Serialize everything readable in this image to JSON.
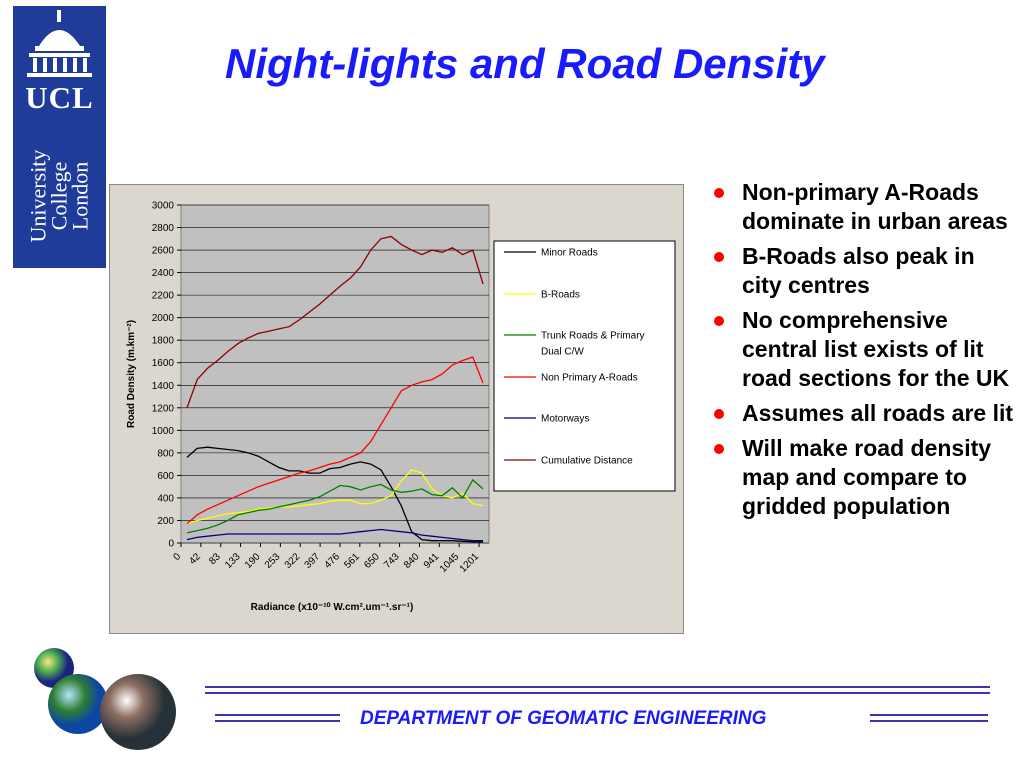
{
  "logo": {
    "abbr": "UCL",
    "line1": "University",
    "line2": "College",
    "line3": "London"
  },
  "title": "Night-lights and Road Density",
  "bullets": [
    "Non-primary A-Roads dominate in urban areas",
    "B-Roads also peak in city centres",
    "No comprehensive central list exists of lit road sections for the UK",
    "Assumes all roads are lit",
    "Will make road density map and compare to gridded population"
  ],
  "footer": {
    "department": "DEPARTMENT OF GEOMATIC ENGINEERING"
  },
  "colors": {
    "title": "#1a1aff",
    "bullet": "#ff0000",
    "logo_bg": "#1f3c9a",
    "rule": "#3a34b0"
  },
  "chart_data": {
    "type": "line",
    "ylabel": "Road Density (m.km⁻²)",
    "xlabel": "Radiance (x10⁻¹⁰ W.cm².um⁻¹.sr⁻¹)",
    "ylim": [
      0,
      3000
    ],
    "y_ticks": [
      "0",
      "200",
      "400",
      "600",
      "800",
      "1000",
      "1200",
      "1400",
      "1600",
      "1800",
      "2000",
      "2200",
      "2400",
      "2600",
      "2800",
      "3000"
    ],
    "x_ticks": [
      "0",
      "42",
      "83",
      "133",
      "190",
      "253",
      "322",
      "397",
      "476",
      "561",
      "650",
      "743",
      "840",
      "941",
      "1045",
      "1201"
    ],
    "grid": "horizontal",
    "legend_position": "right",
    "series": [
      {
        "name": "Minor Roads",
        "color": "#000000",
        "values": [
          760,
          840,
          850,
          840,
          830,
          820,
          800,
          770,
          720,
          670,
          640,
          640,
          620,
          620,
          660,
          670,
          700,
          720,
          700,
          650,
          500,
          330,
          100,
          30,
          20,
          20,
          20,
          15,
          10,
          10
        ]
      },
      {
        "name": "B-Roads",
        "color": "#ffff00",
        "values": [
          170,
          200,
          220,
          240,
          260,
          270,
          280,
          300,
          310,
          320,
          320,
          330,
          340,
          350,
          370,
          380,
          380,
          350,
          350,
          380,
          420,
          550,
          650,
          620,
          480,
          420,
          400,
          440,
          350,
          330
        ]
      },
      {
        "name": "Trunk Roads & Primary Dual C/W",
        "color": "#008000",
        "values": [
          90,
          110,
          130,
          160,
          200,
          250,
          270,
          290,
          300,
          320,
          340,
          360,
          380,
          410,
          460,
          510,
          500,
          470,
          500,
          520,
          470,
          450,
          460,
          480,
          430,
          420,
          490,
          400,
          560,
          480
        ]
      },
      {
        "name": "Non Primary A-Roads",
        "color": "#ff0000",
        "values": [
          170,
          250,
          300,
          340,
          380,
          420,
          460,
          500,
          530,
          560,
          590,
          620,
          640,
          670,
          700,
          720,
          760,
          800,
          900,
          1050,
          1200,
          1350,
          1400,
          1430,
          1450,
          1500,
          1580,
          1620,
          1650,
          1420
        ]
      },
      {
        "name": "Motorways",
        "color": "#000080",
        "values": [
          30,
          50,
          60,
          70,
          80,
          80,
          80,
          80,
          80,
          80,
          80,
          80,
          80,
          80,
          80,
          80,
          90,
          100,
          110,
          120,
          110,
          100,
          90,
          70,
          60,
          50,
          40,
          30,
          20,
          20
        ]
      },
      {
        "name": "Cumulative Distance",
        "color": "#8b0000",
        "values": [
          1200,
          1450,
          1550,
          1620,
          1700,
          1770,
          1820,
          1860,
          1880,
          1900,
          1920,
          1980,
          2050,
          2120,
          2200,
          2280,
          2350,
          2450,
          2600,
          2700,
          2720,
          2650,
          2600,
          2560,
          2600,
          2580,
          2620,
          2560,
          2600,
          2300
        ]
      }
    ]
  }
}
